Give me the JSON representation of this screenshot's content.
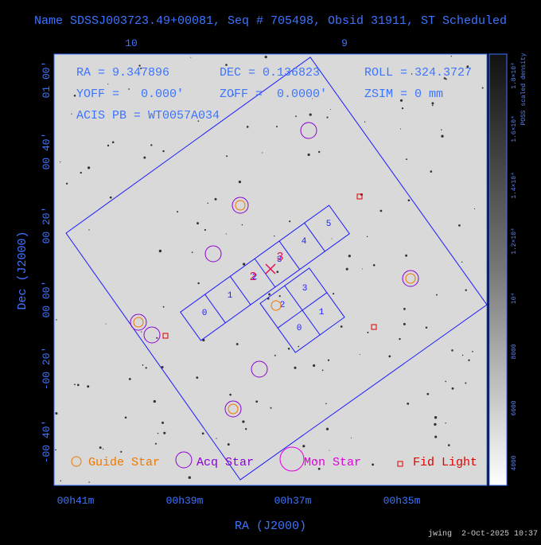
{
  "header": {
    "title": "Name SDSSJ003723.49+00081, Seq # 705498, Obsid 31911, ST Scheduled"
  },
  "top_axis": {
    "ticks": [
      "10",
      "9"
    ]
  },
  "info": [
    "RA = 9.347896",
    "DEC = 0.136823",
    "ROLL = 324.3727",
    "YOFF =   0.000'",
    "ZOFF =  0.0000'",
    "ZSIM = 0 mm",
    "ACIS PB = WT0057A034"
  ],
  "left_axis": {
    "label": "Dec (J2000)",
    "ticks": [
      "01 00'",
      "00 40'",
      "00 20'",
      "00 00'",
      "-00 20'",
      "-00 40'"
    ]
  },
  "bottom_axis": {
    "label": "RA (J2000)",
    "ticks": [
      "00h41m",
      "00h39m",
      "00h37m",
      "00h35m"
    ]
  },
  "colorbar": {
    "label": "POSS scaled density",
    "ticks": [
      "1.8×10⁴",
      "1.6×10⁴",
      "1.4×10⁴",
      "1.2×10⁴",
      "10⁴",
      "8000",
      "6000",
      "4000"
    ]
  },
  "chips": {
    "s_array": [
      "0",
      "1",
      "2",
      "3",
      "4",
      "5"
    ],
    "i_array": [
      "2",
      "3",
      "0",
      "1"
    ]
  },
  "aimpoint": [
    "2",
    "3"
  ],
  "legend": [
    "Guide Star",
    "Acq Star",
    "Mon Star",
    "Fid Light"
  ],
  "footer": "jwing  2-Oct-2025 10:37"
}
